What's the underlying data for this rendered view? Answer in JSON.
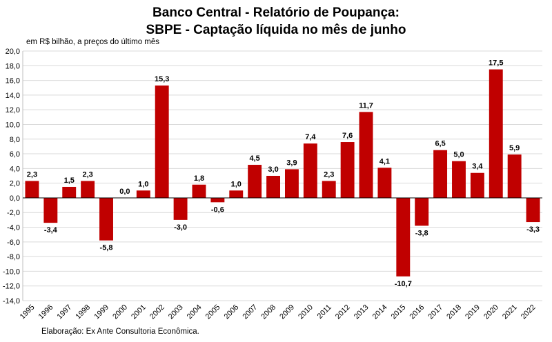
{
  "header": {
    "title_line1": "Banco Central - Relatório de Poupança:",
    "title_line2": "SBPE - Captação líquida no mês de junho",
    "unit_label": "em R$ bilhão, a preços do último mês"
  },
  "footer": {
    "source": "Elaboração: Ex Ante Consultoria Econômica."
  },
  "colors": {
    "bar": "#c00000",
    "grid": "#d9d9d9",
    "axis": "#000000"
  },
  "chart_data": {
    "type": "bar",
    "title": "Banco Central - Relatório de Poupança: SBPE - Captação líquida no mês de junho",
    "ylabel": "em R$ bilhão, a preços do último mês",
    "xlabel": "",
    "ylim": [
      -14,
      20
    ],
    "ytick_step": 2,
    "grid": true,
    "categories": [
      "1995",
      "1996",
      "1997",
      "1998",
      "1999",
      "2000",
      "2001",
      "2002",
      "2003",
      "2004",
      "2005",
      "2006",
      "2007",
      "2008",
      "2009",
      "2010",
      "2011",
      "2012",
      "2013",
      "2014",
      "2015",
      "2016",
      "2017",
      "2018",
      "2019",
      "2020",
      "2021",
      "2022"
    ],
    "values": [
      2.3,
      -3.4,
      1.5,
      2.3,
      -5.8,
      0.0,
      1.0,
      15.3,
      -3.0,
      1.8,
      -0.6,
      1.0,
      4.5,
      3.0,
      3.9,
      7.4,
      2.3,
      7.6,
      11.7,
      4.1,
      -10.7,
      -3.8,
      6.5,
      5.0,
      3.4,
      17.5,
      5.9,
      -3.3
    ],
    "value_labels": [
      "2,3",
      "-3,4",
      "1,5",
      "2,3",
      "-5,8",
      "0,0",
      "1,0",
      "15,3",
      "-3,0",
      "1,8",
      "-0,6",
      "1,0",
      "4,5",
      "3,0",
      "3,9",
      "7,4",
      "2,3",
      "7,6",
      "11,7",
      "4,1",
      "-10,7",
      "-3,8",
      "6,5",
      "5,0",
      "3,4",
      "17,5",
      "5,9",
      "-3,3"
    ],
    "ytick_labels": [
      "20,0",
      "18,0",
      "16,0",
      "14,0",
      "12,0",
      "10,0",
      "8,0",
      "6,0",
      "4,0",
      "2,0",
      "0,0",
      "-2,0",
      "-4,0",
      "-6,0",
      "-8,0",
      "-10,0",
      "-12,0",
      "-14,0"
    ]
  }
}
